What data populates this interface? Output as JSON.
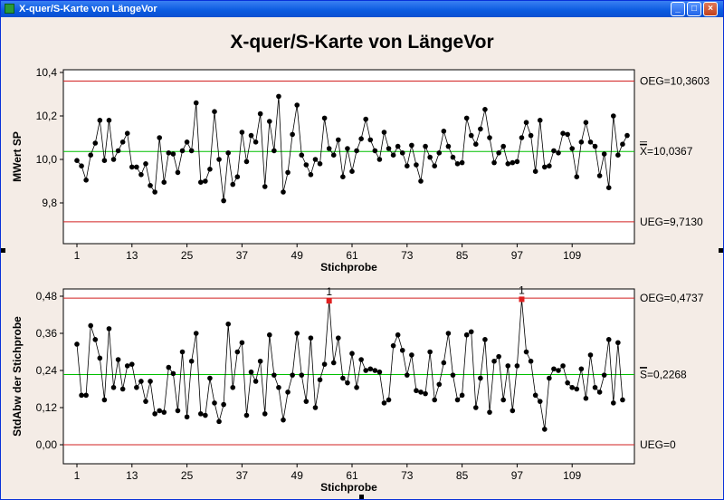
{
  "window": {
    "title": "X-quer/S-Karte von LängeVor",
    "buttons": {
      "minimize": "_",
      "maximize": "□",
      "close": "×"
    }
  },
  "chart_data": [
    {
      "type": "line",
      "title": "X-quer/S-Karte von LängeVor",
      "xlabel": "Stichprobe",
      "ylabel": "MWert SP",
      "xlim": [
        1,
        125
      ],
      "ylim": [
        9.71,
        10.4
      ],
      "x_ticks": [
        1,
        13,
        25,
        37,
        49,
        61,
        73,
        85,
        97,
        109
      ],
      "x_tick_labels": [
        "1",
        "13",
        "25",
        "37",
        "49",
        "61",
        "73",
        "85",
        "97",
        "109"
      ],
      "y_ticks": [
        9.8,
        10.0,
        10.2,
        10.4
      ],
      "y_tick_labels": [
        "9,8",
        "10,0",
        "10,2",
        "10,4"
      ],
      "reference_lines": [
        {
          "name": "OEG",
          "value": 10.3603,
          "label": "OEG=10,3603",
          "color": "#d22020"
        },
        {
          "name": "center",
          "value": 10.0367,
          "label_prefix": "X",
          "label": "=10,0367",
          "color": "#00c000"
        },
        {
          "name": "UEG",
          "value": 9.713,
          "label": "UEG=9,7130",
          "color": "#d22020"
        }
      ],
      "series": [
        {
          "values": [
            9.995,
            9.97,
            9.905,
            10.02,
            10.075,
            10.18,
            9.995,
            10.18,
            10.0,
            10.04,
            10.08,
            10.12,
            9.965,
            9.965,
            9.93,
            9.98,
            9.88,
            9.85,
            10.1,
            9.895,
            10.03,
            10.025,
            9.94,
            10.04,
            10.08,
            10.04,
            10.26,
            9.895,
            9.9,
            9.955,
            10.22,
            10.0,
            9.81,
            10.03,
            9.885,
            9.92,
            10.125,
            9.99,
            10.11,
            10.08,
            10.21,
            9.875,
            10.175,
            10.04,
            10.29,
            9.85,
            9.94,
            10.115,
            10.25,
            10.02,
            9.975,
            9.93,
            10.0,
            9.98,
            10.19,
            10.05,
            10.02,
            10.09,
            9.92,
            10.05,
            9.945,
            10.04,
            10.095,
            10.185,
            10.09,
            10.04,
            10.0,
            10.125,
            10.05,
            10.02,
            10.06,
            10.03,
            9.97,
            10.065,
            9.975,
            9.9,
            10.06,
            10.01,
            9.97,
            10.03,
            10.13,
            10.06,
            10.01,
            9.98,
            9.985,
            10.19,
            10.11,
            10.07,
            10.14,
            10.23,
            10.1,
            9.985,
            10.03,
            10.06,
            9.98,
            9.985,
            9.99,
            10.1,
            10.17,
            10.11,
            9.945,
            10.18,
            9.965,
            9.97,
            10.04,
            10.03,
            10.12,
            10.115,
            10.05,
            9.92,
            10.08,
            10.17,
            10.08,
            10.06,
            9.925,
            10.025,
            9.87,
            10.2,
            10.02,
            10.07,
            10.11
          ]
        }
      ]
    },
    {
      "type": "line",
      "xlabel": "Stichprobe",
      "ylabel": "StdAbw der Stichprobe",
      "xlim": [
        1,
        125
      ],
      "ylim": [
        0.0,
        0.4737
      ],
      "x_ticks": [
        1,
        13,
        25,
        37,
        49,
        61,
        73,
        85,
        97,
        109
      ],
      "x_tick_labels": [
        "1",
        "13",
        "25",
        "37",
        "49",
        "61",
        "73",
        "85",
        "97",
        "109"
      ],
      "y_ticks": [
        0.0,
        0.12,
        0.24,
        0.36,
        0.48
      ],
      "y_tick_labels": [
        "0,00",
        "0,12",
        "0,24",
        "0,36",
        "0,48"
      ],
      "reference_lines": [
        {
          "name": "OEG",
          "value": 0.4737,
          "label": "OEG=0,4737",
          "color": "#d22020"
        },
        {
          "name": "center",
          "value": 0.2268,
          "label_prefix": "S",
          "label": "=0,2268",
          "color": "#00c000"
        },
        {
          "name": "UEG",
          "value": 0.0,
          "label": "UEG=0",
          "color": "#d22020"
        }
      ],
      "flagged_points": [
        {
          "x": 56,
          "label": "1"
        },
        {
          "x": 98,
          "label": "1"
        }
      ],
      "series": [
        {
          "values": [
            0.325,
            0.16,
            0.16,
            0.385,
            0.34,
            0.28,
            0.145,
            0.375,
            0.185,
            0.275,
            0.18,
            0.255,
            0.26,
            0.185,
            0.205,
            0.14,
            0.205,
            0.1,
            0.11,
            0.105,
            0.25,
            0.23,
            0.11,
            0.3,
            0.09,
            0.27,
            0.36,
            0.1,
            0.095,
            0.215,
            0.135,
            0.075,
            0.13,
            0.39,
            0.185,
            0.3,
            0.33,
            0.095,
            0.235,
            0.205,
            0.27,
            0.1,
            0.355,
            0.225,
            0.185,
            0.08,
            0.17,
            0.225,
            0.36,
            0.225,
            0.14,
            0.345,
            0.12,
            0.21,
            0.26,
            0.465,
            0.265,
            0.345,
            0.215,
            0.2,
            0.295,
            0.185,
            0.275,
            0.24,
            0.245,
            0.24,
            0.235,
            0.135,
            0.145,
            0.32,
            0.355,
            0.305,
            0.225,
            0.29,
            0.175,
            0.17,
            0.165,
            0.3,
            0.145,
            0.195,
            0.265,
            0.36,
            0.225,
            0.145,
            0.16,
            0.355,
            0.365,
            0.12,
            0.215,
            0.34,
            0.105,
            0.27,
            0.285,
            0.145,
            0.255,
            0.11,
            0.255,
            0.47,
            0.3,
            0.27,
            0.16,
            0.14,
            0.05,
            0.215,
            0.245,
            0.24,
            0.255,
            0.2,
            0.185,
            0.18,
            0.245,
            0.15,
            0.29,
            0.185,
            0.17,
            0.225,
            0.34,
            0.135,
            0.33,
            0.145
          ]
        }
      ]
    }
  ]
}
